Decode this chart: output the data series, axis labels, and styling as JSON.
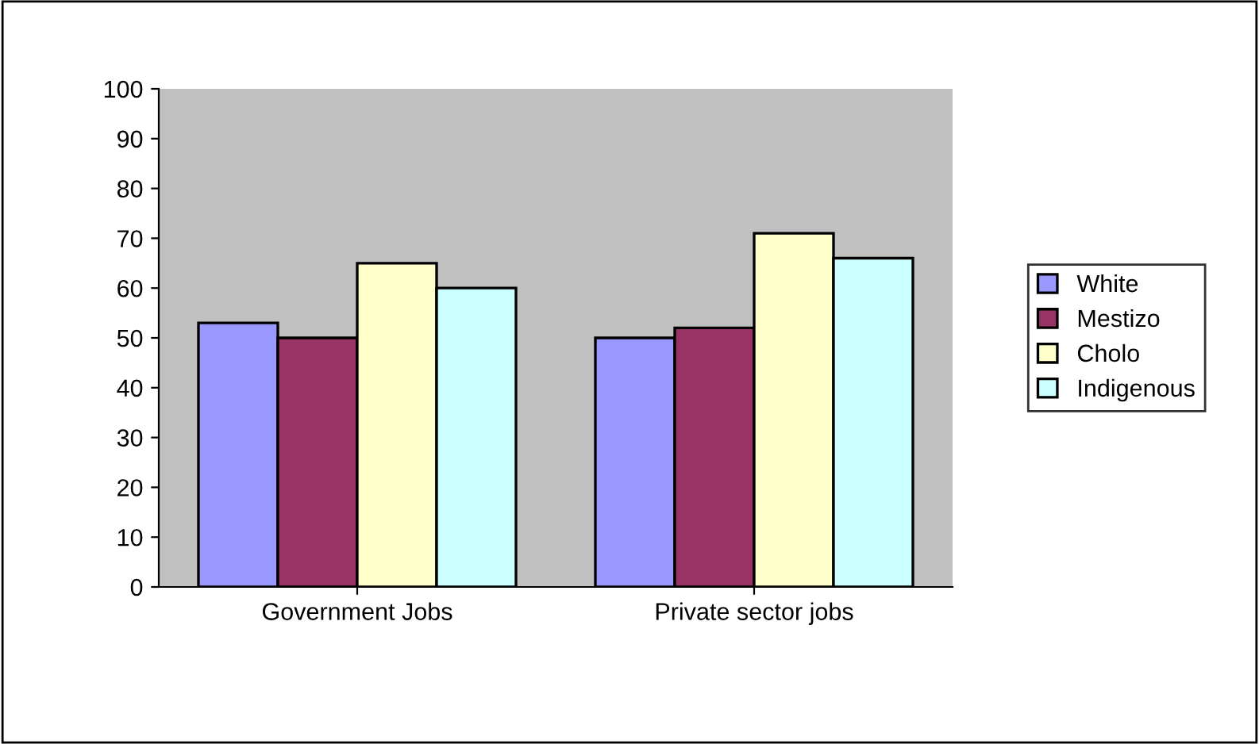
{
  "chart_data": {
    "type": "bar",
    "categories": [
      "Government Jobs",
      "Private sector jobs"
    ],
    "series": [
      {
        "name": "White",
        "color": "#9999ff",
        "values": [
          53,
          50
        ]
      },
      {
        "name": "Mestizo",
        "color": "#993366",
        "values": [
          50,
          52
        ]
      },
      {
        "name": "Cholo",
        "color": "#ffffcc",
        "values": [
          65,
          71
        ]
      },
      {
        "name": "Indigenous",
        "color": "#ccffff",
        "values": [
          60,
          66
        ]
      }
    ],
    "ylim": [
      0,
      100
    ],
    "yticks": [
      0,
      10,
      20,
      30,
      40,
      50,
      60,
      70,
      80,
      90,
      100
    ],
    "grid": false,
    "legend": "right"
  }
}
